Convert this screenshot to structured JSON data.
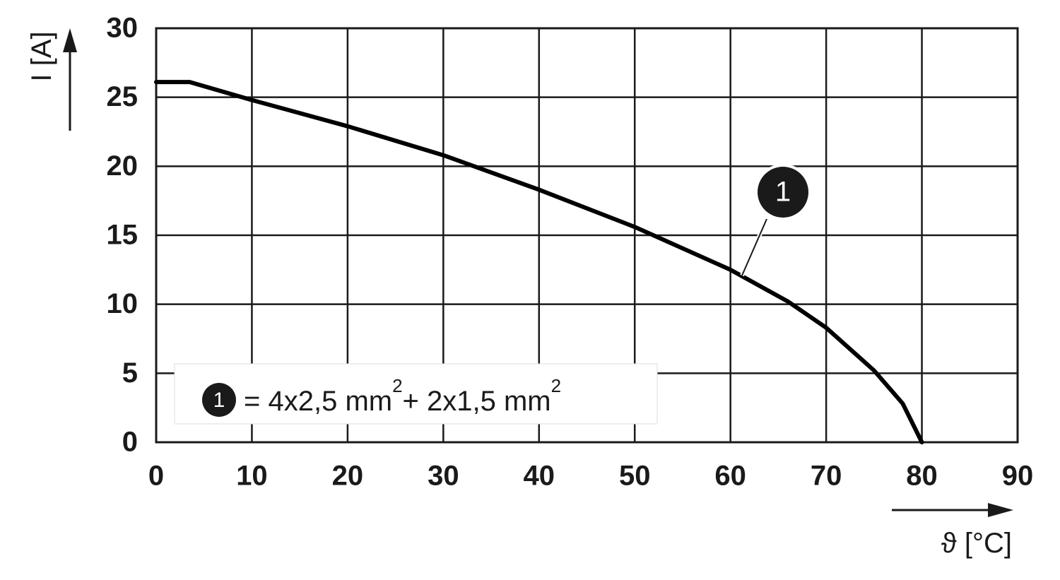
{
  "chart_data": {
    "type": "line",
    "x_label": "ϑ [°C]",
    "y_label": "I [A]",
    "xlim": [
      0,
      90
    ],
    "ylim": [
      0,
      30
    ],
    "xticks": [
      0,
      10,
      20,
      30,
      40,
      50,
      60,
      70,
      80,
      90
    ],
    "yticks": [
      0,
      5,
      10,
      15,
      20,
      25,
      30
    ],
    "grid": true,
    "x": [
      0,
      3.5,
      10,
      20,
      30,
      40,
      50,
      60,
      66,
      70,
      75,
      78,
      80
    ],
    "series": [
      {
        "name": "1",
        "color": "#000000",
        "values": [
          26.1,
          26.1,
          24.8,
          22.9,
          20.8,
          18.3,
          15.6,
          12.5,
          10.2,
          8.3,
          5.2,
          2.8,
          0
        ]
      }
    ],
    "legend_parts": [
      "= 4x2,5 mm",
      "2",
      "+ 2x1,5 mm",
      "2"
    ]
  }
}
